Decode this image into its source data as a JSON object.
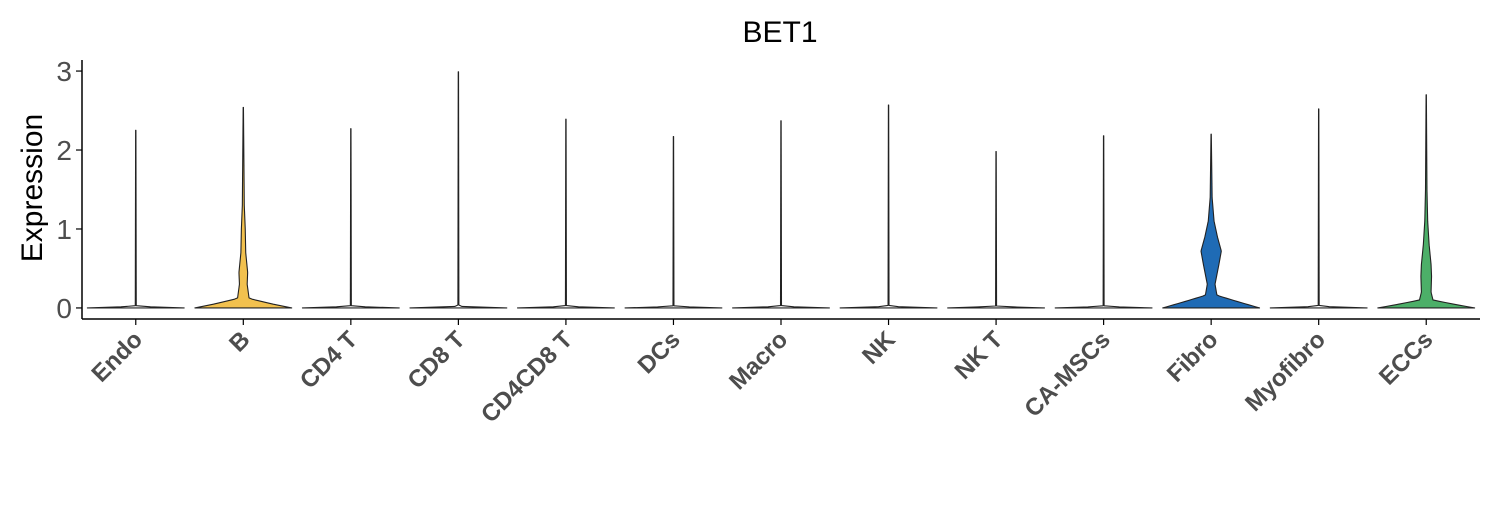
{
  "chart_data": {
    "type": "violin",
    "title": "BET1",
    "xlabel": "",
    "ylabel": "Expression",
    "ylim": [
      -0.14,
      3.14
    ],
    "yticks": [
      0,
      1,
      2,
      3
    ],
    "grid": false,
    "legend": "none",
    "categories": [
      "Endo",
      "B",
      "CD4 T",
      "CD8 T",
      "CD4CD8 T",
      "DCs",
      "Macro",
      "NK",
      "NK T",
      "CA-MSCs",
      "Fibro",
      "Myofibro",
      "ECCs"
    ],
    "colors": {
      "Endo": "#ffffff",
      "B": "#F2C14E",
      "CD4 T": "#ffffff",
      "CD8 T": "#ffffff",
      "CD4CD8 T": "#ffffff",
      "DCs": "#ffffff",
      "Macro": "#ffffff",
      "NK": "#ffffff",
      "NK T": "#ffffff",
      "CA-MSCs": "#ffffff",
      "Fibro": "#1F6BB5",
      "Myofibro": "#ffffff",
      "ECCs": "#4CAF68"
    },
    "max_values": [
      2.25,
      2.54,
      2.27,
      2.99,
      2.39,
      2.17,
      2.37,
      2.57,
      1.98,
      2.18,
      2.2,
      2.52,
      2.7
    ],
    "density_profiles": [
      [
        [
          0,
          1
        ],
        [
          0.02,
          0.01
        ],
        [
          2.25,
          0.003
        ]
      ],
      [
        [
          0,
          1
        ],
        [
          0.05,
          0.6
        ],
        [
          0.12,
          0.12
        ],
        [
          0.3,
          0.08
        ],
        [
          0.45,
          0.09
        ],
        [
          0.7,
          0.05
        ],
        [
          1.0,
          0.04
        ],
        [
          1.3,
          0.02
        ],
        [
          2.54,
          0.003
        ]
      ],
      [
        [
          0,
          1
        ],
        [
          0.02,
          0.01
        ],
        [
          2.27,
          0.003
        ]
      ],
      [
        [
          0,
          1
        ],
        [
          0.02,
          0.01
        ],
        [
          2.99,
          0.003
        ]
      ],
      [
        [
          0,
          1
        ],
        [
          0.02,
          0.01
        ],
        [
          2.39,
          0.003
        ]
      ],
      [
        [
          0,
          1
        ],
        [
          0.02,
          0.01
        ],
        [
          2.17,
          0.003
        ]
      ],
      [
        [
          0,
          1
        ],
        [
          0.02,
          0.01
        ],
        [
          2.37,
          0.003
        ]
      ],
      [
        [
          0,
          1
        ],
        [
          0.02,
          0.01
        ],
        [
          2.57,
          0.003
        ]
      ],
      [
        [
          0,
          1
        ],
        [
          0.02,
          0.01
        ],
        [
          1.98,
          0.003
        ]
      ],
      [
        [
          0,
          1
        ],
        [
          0.02,
          0.01
        ],
        [
          2.18,
          0.003
        ]
      ],
      [
        [
          0,
          1
        ],
        [
          0.08,
          0.55
        ],
        [
          0.16,
          0.12
        ],
        [
          0.3,
          0.08
        ],
        [
          0.55,
          0.16
        ],
        [
          0.72,
          0.21
        ],
        [
          0.9,
          0.13
        ],
        [
          1.1,
          0.06
        ],
        [
          1.4,
          0.02
        ],
        [
          2.2,
          0.003
        ]
      ],
      [
        [
          0,
          1
        ],
        [
          0.02,
          0.01
        ],
        [
          2.52,
          0.003
        ]
      ],
      [
        [
          0,
          1
        ],
        [
          0.05,
          0.55
        ],
        [
          0.1,
          0.14
        ],
        [
          0.2,
          0.1
        ],
        [
          0.4,
          0.11
        ],
        [
          0.55,
          0.1
        ],
        [
          0.8,
          0.06
        ],
        [
          1.1,
          0.03
        ],
        [
          1.5,
          0.015
        ],
        [
          2.7,
          0.003
        ]
      ]
    ]
  }
}
